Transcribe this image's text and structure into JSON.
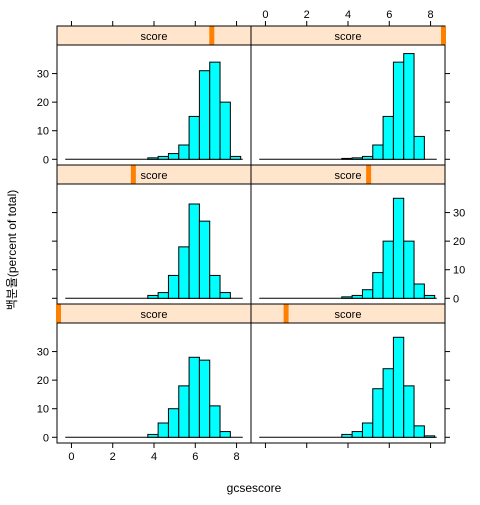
{
  "chart_data": {
    "type": "bar",
    "layout": "lattice",
    "xlabel": "gcsescore",
    "ylabel": "백분율(percent of total)",
    "xlim": [
      -0.7,
      8.7
    ],
    "ylim": [
      -2,
      40
    ],
    "x_ticks": [
      0,
      2,
      4,
      6,
      8
    ],
    "y_ticks": [
      0,
      10,
      20,
      30
    ],
    "strip_label": "score",
    "colors": {
      "bar_fill": "#00ffff",
      "bar_stroke": "#000000",
      "strip_fill": "#ffe5cc",
      "strip_marker": "#ff8000"
    },
    "bin_edges": [
      3.7,
      4.2,
      4.7,
      5.2,
      5.7,
      6.2,
      6.7,
      7.2,
      7.7,
      8.2
    ],
    "panels": [
      {
        "position": "top-left",
        "strip_value": 6.8,
        "values": [
          0.5,
          1,
          2,
          5,
          15,
          31,
          34,
          20,
          1
        ]
      },
      {
        "position": "top-right",
        "strip_value": 8.7,
        "values": [
          0.3,
          0.5,
          1,
          5,
          15,
          34,
          37,
          8,
          0
        ]
      },
      {
        "position": "middle-left",
        "strip_value": 3.0,
        "values": [
          1,
          2,
          8,
          18,
          33,
          27,
          8,
          2,
          0
        ]
      },
      {
        "position": "middle-right",
        "strip_value": 5.0,
        "values": [
          0.5,
          1,
          3,
          9,
          20,
          35,
          20,
          5,
          1
        ]
      },
      {
        "position": "bottom-left",
        "strip_value": -0.7,
        "values": [
          1,
          5,
          10,
          18,
          28,
          27,
          11,
          2,
          0
        ]
      },
      {
        "position": "bottom-right",
        "strip_value": 1.0,
        "values": [
          1,
          2,
          5,
          17,
          24,
          35,
          18,
          4,
          0.5
        ]
      }
    ]
  }
}
